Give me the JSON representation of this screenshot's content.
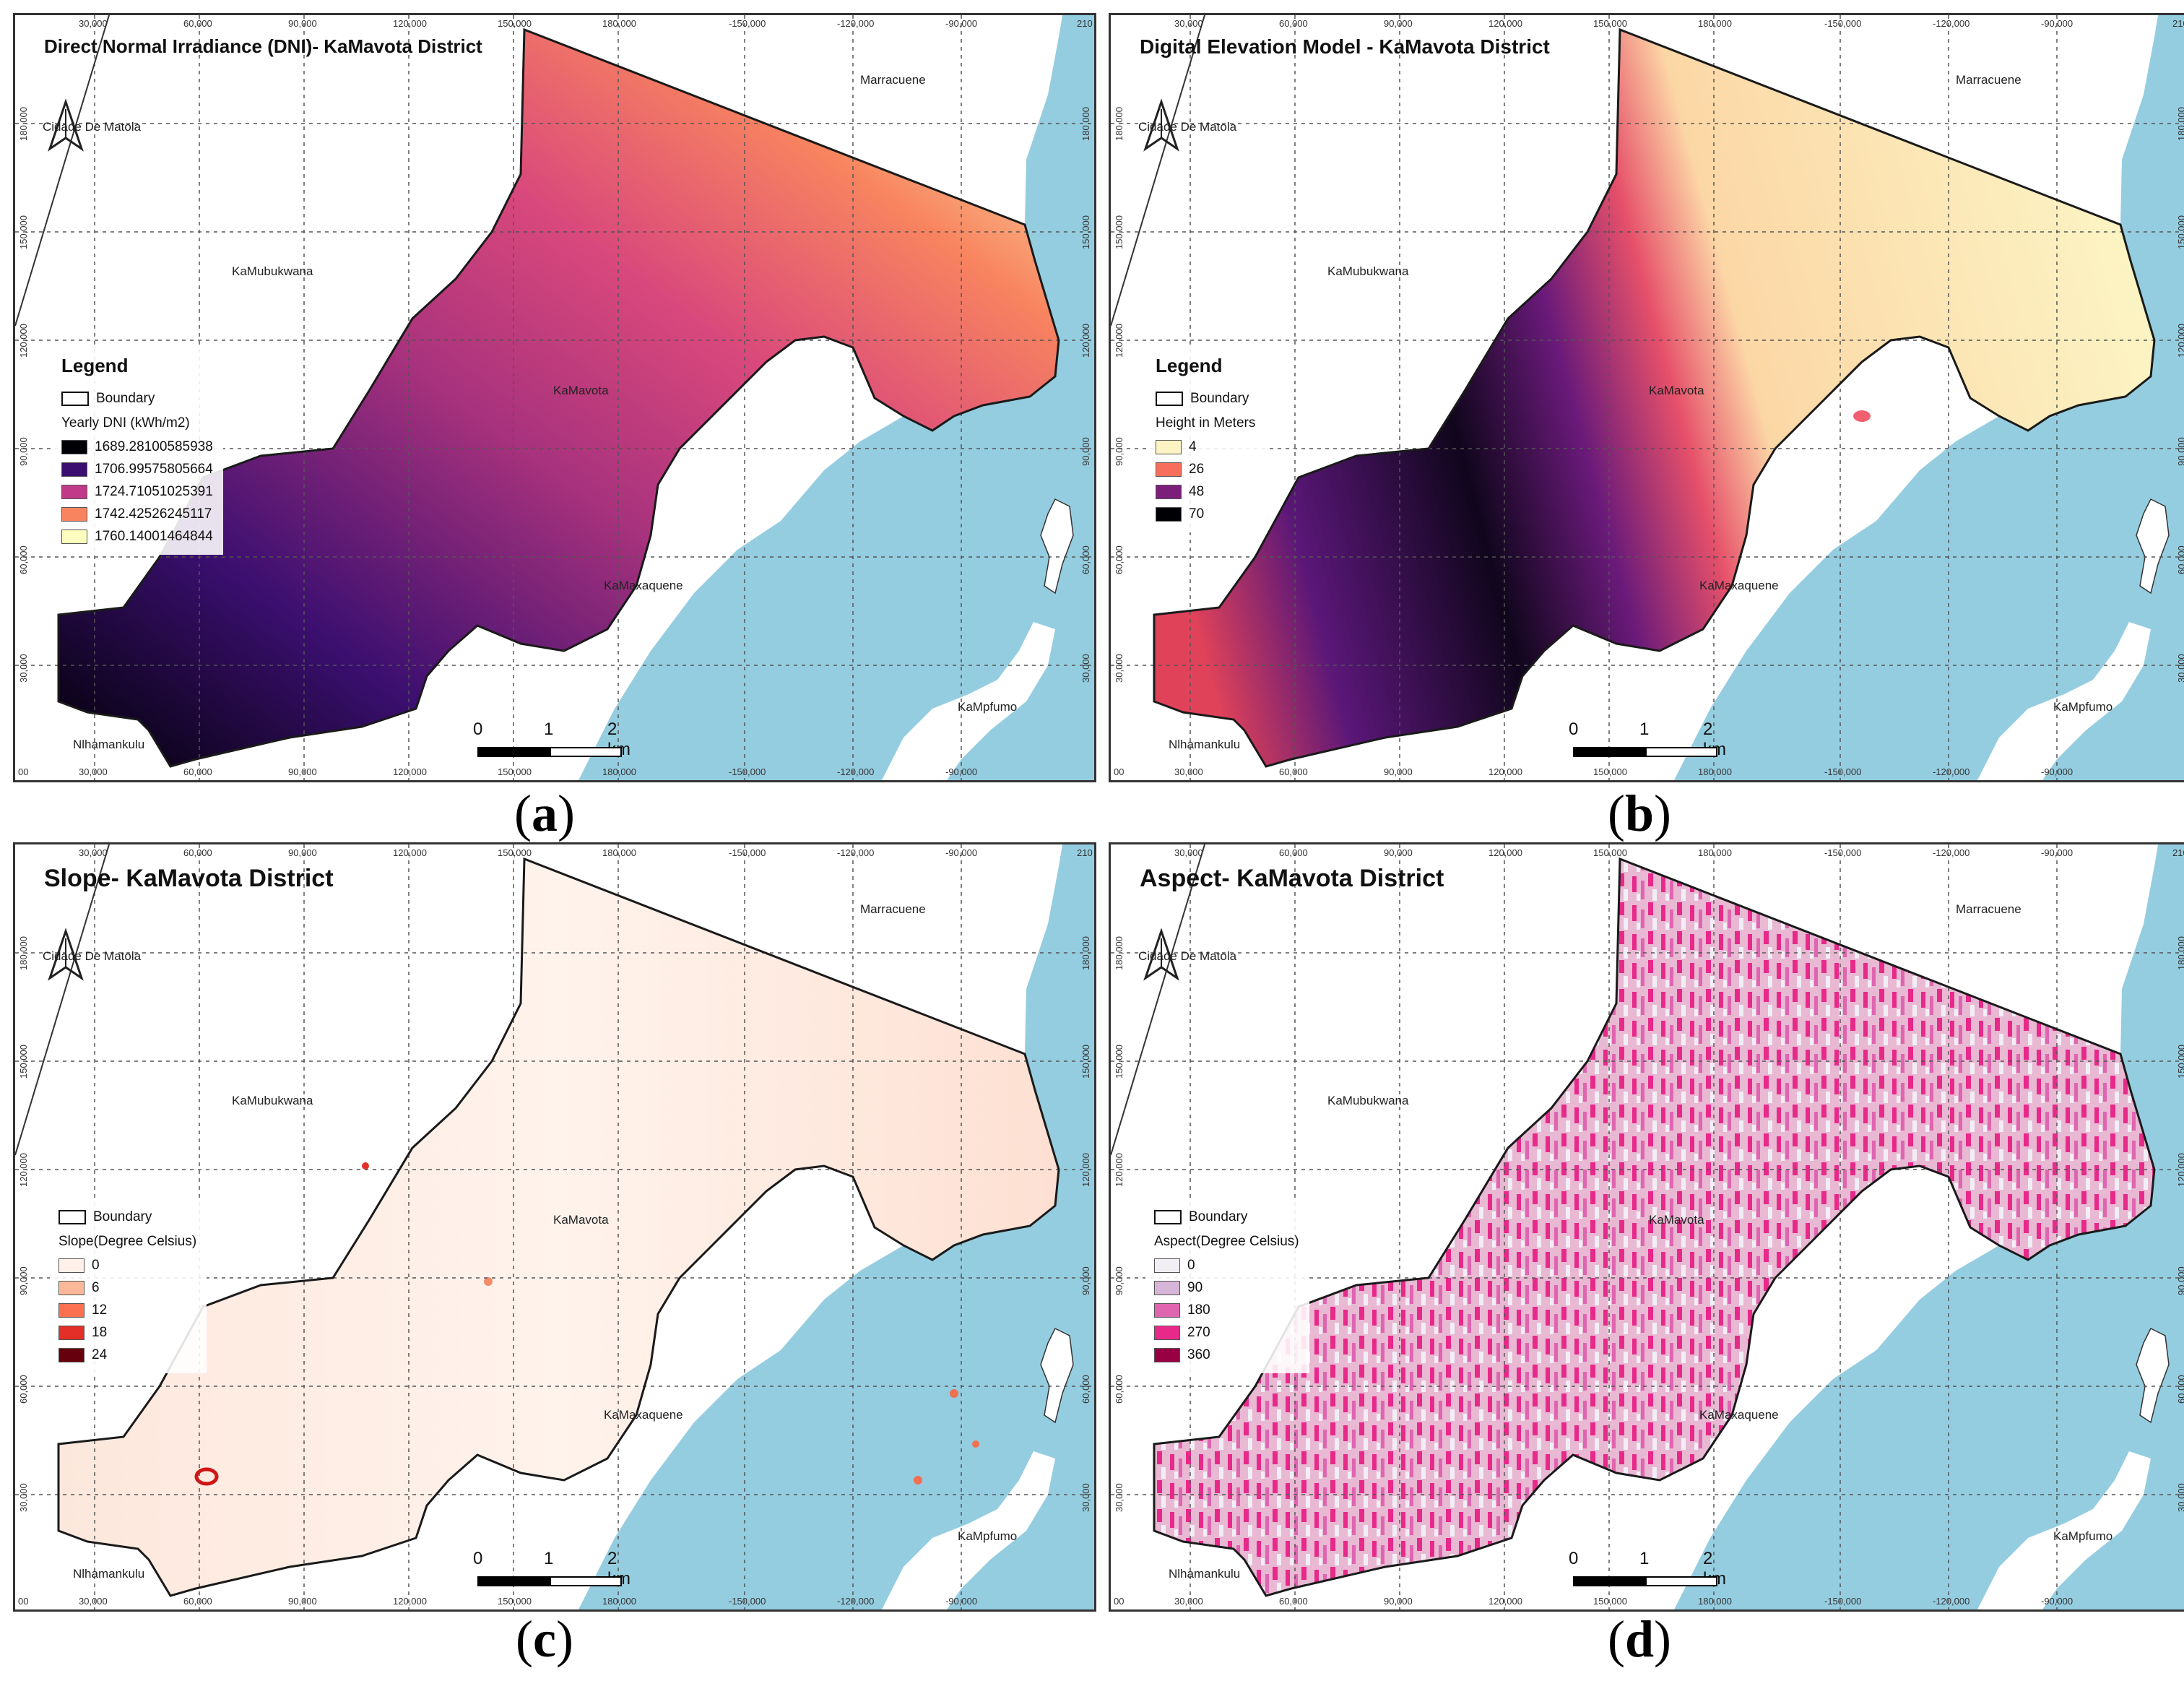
{
  "panels": [
    {
      "id": "a",
      "title": "Direct Normal Irradiance (DNI)- KaMavota District",
      "caption": "a",
      "legend": {
        "heading": "Legend",
        "boundary_label": "Boundary",
        "subtitle": "Yearly DNI (kWh/m2)",
        "classes": [
          {
            "label": "1689.28100585938",
            "color": "#000004"
          },
          {
            "label": "1706.99575805664",
            "color": "#3b0f70"
          },
          {
            "label": "1724.71051025391",
            "color": "#c13a8a"
          },
          {
            "label": "1742.42526245117",
            "color": "#f8845f"
          },
          {
            "label": "1760.14001464844",
            "color": "#fcfdbf"
          }
        ]
      }
    },
    {
      "id": "b",
      "title": "Digital Elevation Model - KaMavota District",
      "caption": "b",
      "legend": {
        "heading": "Legend",
        "boundary_label": "Boundary",
        "subtitle": "Height in Meters",
        "classes": [
          {
            "label": "4",
            "color": "#fcf4c4"
          },
          {
            "label": "26",
            "color": "#f76f5c"
          },
          {
            "label": "48",
            "color": "#7b1f7a"
          },
          {
            "label": "70",
            "color": "#000004"
          }
        ]
      }
    },
    {
      "id": "c",
      "title": "Slope- KaMavota District",
      "caption": "c",
      "legend": {
        "heading": "",
        "boundary_label": "Boundary",
        "subtitle": "Slope(Degree Celsius)",
        "classes": [
          {
            "label": "0",
            "color": "#fff1ea"
          },
          {
            "label": "6",
            "color": "#fcb99a"
          },
          {
            "label": "12",
            "color": "#fb7050"
          },
          {
            "label": "18",
            "color": "#e32f27"
          },
          {
            "label": "24",
            "color": "#67000d"
          }
        ]
      }
    },
    {
      "id": "d",
      "title": "Aspect- KaMavota District",
      "caption": "d",
      "legend": {
        "heading": "",
        "boundary_label": "Boundary",
        "subtitle": "Aspect(Degree Celsius)",
        "classes": [
          {
            "label": "0",
            "color": "#f1eef6"
          },
          {
            "label": "90",
            "color": "#d7b5d8"
          },
          {
            "label": "180",
            "color": "#df65b0"
          },
          {
            "label": "270",
            "color": "#e7298a"
          },
          {
            "label": "360",
            "color": "#980043"
          }
        ]
      }
    }
  ],
  "places": {
    "cidade": "Cidade De Matola",
    "mubukwana": "KaMubukwana",
    "mavota": "KaMavota",
    "maxaquene": "KaMaxaquene",
    "nlhamankulu": "Nlhamankulu",
    "marracuene": "Marracuene",
    "mplumo": "KaMpfumo"
  },
  "scalebar": {
    "zero": "0",
    "one": "1",
    "two": "2 km"
  },
  "ticks": {
    "top": [
      "30,000",
      "60,000",
      "90,000",
      "120,000",
      "150,000",
      "180,000",
      "-150,000",
      "-120,000",
      "-90,000"
    ],
    "bottom": [
      "30,000",
      "60,000",
      "90,000",
      "120,000",
      "150,000",
      "180,000",
      "-150,000",
      "-120,000",
      "-90,000"
    ],
    "left": [
      "180,000",
      "150,000",
      "120,000",
      "90,000",
      "60,000",
      "30,000"
    ],
    "corner_top": "210",
    "corner_bottom": "00"
  },
  "colors": {
    "water": "#95cde0",
    "land": "#ffffff",
    "boundary": "#1a1a1a",
    "grid": "#555555"
  }
}
